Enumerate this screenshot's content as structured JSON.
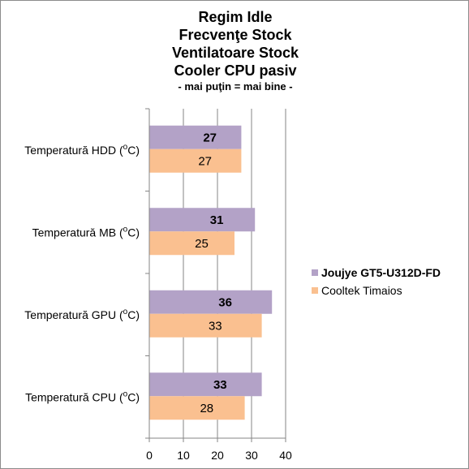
{
  "chart_data": {
    "type": "bar",
    "orientation": "horizontal",
    "title_lines": [
      "Regim Idle",
      "Frecvenţe Stock",
      "Ventilatoare Stock",
      "Cooler CPU pasiv"
    ],
    "subtitle": "- mai puţin = mai bine -",
    "categories": [
      {
        "label": "Temperatură  HDD (",
        "sup": "o",
        "suffix": "C)"
      },
      {
        "label": "Temperatură  MB (",
        "sup": "o",
        "suffix": "C)"
      },
      {
        "label": "Temperatură  GPU (",
        "sup": "o",
        "suffix": "C)"
      },
      {
        "label": "Temperatură  CPU (",
        "sup": "o",
        "suffix": "C)"
      }
    ],
    "series": [
      {
        "name": "Joujye GT5-U312D-FD",
        "values": [
          27,
          31,
          36,
          33
        ],
        "color": "#b3a2c7",
        "label_bold": true
      },
      {
        "name": "Cooltek Timaios",
        "values": [
          27,
          25,
          33,
          28
        ],
        "color": "#fac090",
        "label_bold": false
      }
    ],
    "xlim": [
      0,
      40
    ],
    "xticks": [
      0,
      10,
      20,
      30,
      40
    ],
    "grid": true,
    "legend_position": "right"
  }
}
